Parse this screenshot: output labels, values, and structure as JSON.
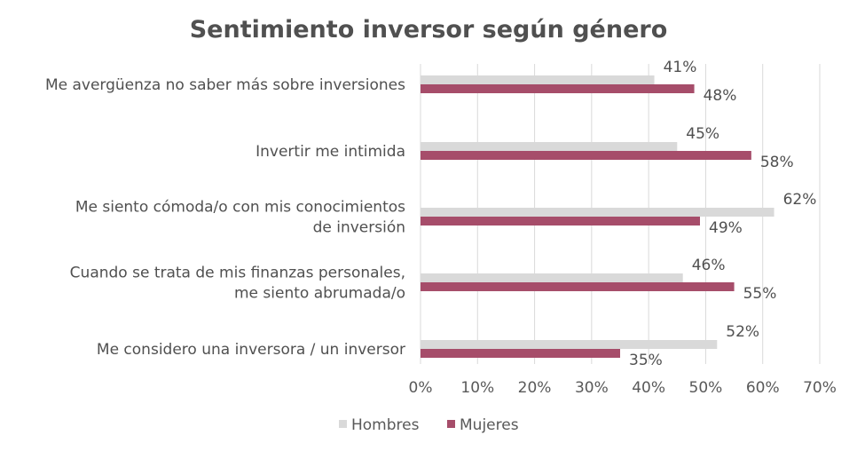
{
  "chart_data": {
    "type": "bar",
    "orientation": "horizontal",
    "title": "Sentimiento inversor según género",
    "categories": [
      "Me avergüenza no saber más sobre inversiones",
      "Invertir me intimida",
      "Me siento cómoda/o con mis conocimientos de inversión",
      "Cuando se trata de mis finanzas personales, me siento abrumada/o",
      "Me considero una inversora / un inversor"
    ],
    "category_lines": [
      [
        "Me avergüenza no saber más sobre inversiones"
      ],
      [
        "Invertir me intimida"
      ],
      [
        "Me siento cómoda/o con mis conocimientos",
        "de inversión"
      ],
      [
        "Cuando se trata de mis finanzas personales,",
        "me siento abrumada/o"
      ],
      [
        "Me considero una inversora / un inversor"
      ]
    ],
    "series": [
      {
        "name": "Hombres",
        "color": "#d9d9d9",
        "values": [
          41,
          45,
          62,
          46,
          52
        ]
      },
      {
        "name": "Mujeres",
        "color": "#a64d6a",
        "values": [
          48,
          58,
          49,
          55,
          35
        ]
      }
    ],
    "data_label_suffix": "%",
    "xlim": [
      0,
      70
    ],
    "xticks": [
      "0%",
      "10%",
      "20%",
      "30%",
      "40%",
      "50%",
      "60%",
      "70%"
    ],
    "grid": true,
    "legend_position": "bottom"
  }
}
